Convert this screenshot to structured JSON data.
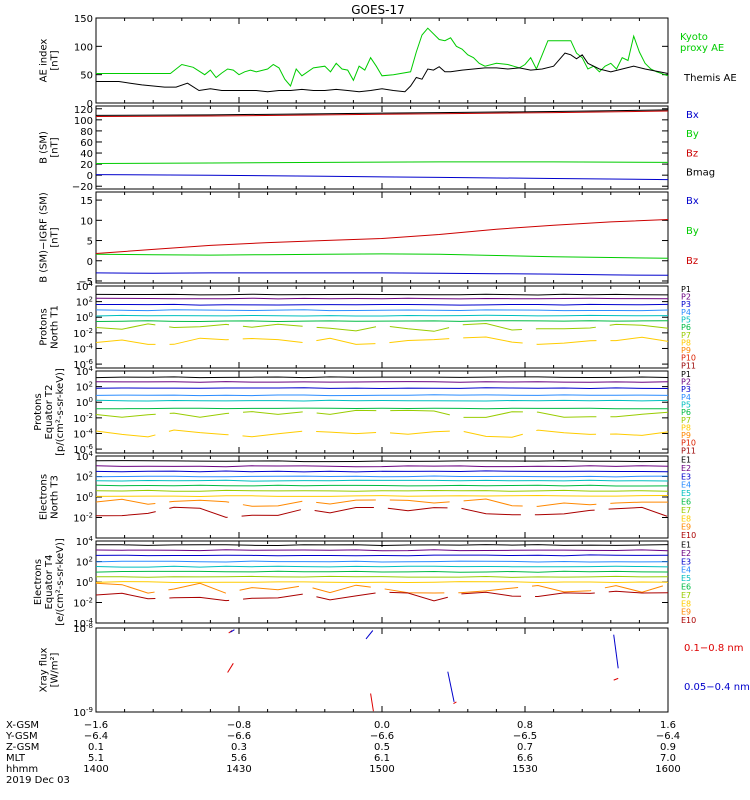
{
  "title": "GOES-17",
  "chart_data": [
    {
      "type": "line",
      "ylabel": [
        "AE index",
        "[nT]"
      ],
      "ylim": [
        0,
        150
      ],
      "yticks": [
        {
          "v": 150,
          "l": "150"
        },
        {
          "v": 100,
          "l": "100"
        },
        {
          "v": 50,
          "l": "50"
        },
        {
          "v": 0,
          "l": "0"
        }
      ],
      "series": [
        {
          "name": "Kyoto\nproxy AE",
          "color": "#00cc00",
          "x": [
            0,
            2.5,
            5,
            8,
            13,
            15,
            17,
            19,
            20,
            21,
            22,
            23,
            24,
            25,
            26,
            27,
            28,
            30,
            31,
            32,
            33,
            34,
            35,
            36,
            38,
            40,
            41,
            42,
            43,
            44,
            45,
            46,
            47,
            48,
            49,
            50,
            52,
            55,
            56,
            57,
            58,
            60,
            61,
            62,
            63,
            64,
            65,
            66,
            67,
            68,
            70,
            72,
            73,
            74,
            75,
            76,
            77,
            78,
            79,
            80,
            81,
            82,
            83,
            84,
            85,
            86,
            87,
            88,
            89,
            90,
            91,
            92,
            93,
            94,
            95,
            96,
            97,
            98,
            100
          ],
          "y": [
            52,
            52,
            52,
            52,
            52,
            68,
            63,
            50,
            58,
            45,
            53,
            60,
            58,
            50,
            55,
            58,
            55,
            60,
            68,
            62,
            42,
            30,
            60,
            48,
            62,
            65,
            55,
            70,
            60,
            58,
            40,
            65,
            58,
            80,
            65,
            48,
            50,
            55,
            90,
            120,
            132,
            112,
            110,
            115,
            100,
            95,
            85,
            80,
            70,
            65,
            70,
            68,
            65,
            62,
            68,
            80,
            60,
            85,
            110,
            110,
            110,
            110,
            110,
            88,
            80,
            60,
            65,
            55,
            65,
            70,
            60,
            80,
            75,
            118,
            90,
            70,
            60,
            55,
            48
          ]
        },
        {
          "name": "Themis AE",
          "color": "#000000",
          "x": [
            0,
            2,
            4,
            6,
            8,
            10,
            12,
            14,
            16,
            18,
            20,
            22,
            24,
            26,
            28,
            30,
            32,
            34,
            36,
            38,
            40,
            42,
            44,
            46,
            48,
            50,
            52,
            54,
            55,
            56,
            57,
            58,
            59,
            60,
            61,
            62,
            64,
            66,
            68,
            70,
            72,
            74,
            76,
            78,
            80,
            82,
            83,
            84,
            85,
            86,
            88,
            90,
            92,
            94,
            96,
            98,
            100
          ],
          "y": [
            38,
            38,
            38,
            35,
            32,
            30,
            28,
            28,
            35,
            22,
            25,
            22,
            22,
            22,
            22,
            20,
            22,
            22,
            24,
            22,
            22,
            24,
            22,
            20,
            22,
            25,
            22,
            20,
            30,
            45,
            42,
            60,
            58,
            64,
            55,
            55,
            58,
            60,
            62,
            62,
            60,
            62,
            58,
            60,
            65,
            88,
            85,
            78,
            85,
            70,
            60,
            55,
            60,
            65,
            60,
            56,
            52
          ]
        }
      ]
    },
    {
      "type": "line",
      "ylabel": [
        "B (SM)",
        "[nT]"
      ],
      "ylim": [
        -25,
        125
      ],
      "yticks": [
        {
          "v": 120,
          "l": "120"
        },
        {
          "v": 100,
          "l": "100"
        },
        {
          "v": 80,
          "l": "80"
        },
        {
          "v": 60,
          "l": "60"
        },
        {
          "v": 40,
          "l": "40"
        },
        {
          "v": 20,
          "l": "20"
        },
        {
          "v": 0,
          "l": "0"
        },
        {
          "v": -20,
          "l": "−20"
        }
      ],
      "series": [
        {
          "name": "Bx",
          "color": "#0000cc",
          "x": [
            0,
            20,
            40,
            60,
            80,
            100
          ],
          "y": [
            1,
            0,
            -2,
            -4,
            -6,
            -8
          ]
        },
        {
          "name": "By",
          "color": "#00cc00",
          "x": [
            0,
            20,
            40,
            60,
            80,
            100
          ],
          "y": [
            21,
            22,
            23,
            24,
            24,
            23
          ]
        },
        {
          "name": "Bz",
          "color": "#cc0000",
          "x": [
            0,
            20,
            40,
            60,
            80,
            100
          ],
          "y": [
            106,
            107,
            109,
            111,
            113,
            116
          ]
        },
        {
          "name": "Bmag",
          "color": "#000000",
          "x": [
            0,
            20,
            40,
            60,
            80,
            100
          ],
          "y": [
            108,
            109,
            111,
            113,
            115,
            118
          ]
        }
      ]
    },
    {
      "type": "line",
      "ylabel": [
        "B (SM)−IGRF (SM)",
        "[nT]"
      ],
      "ylim": [
        -5.5,
        17
      ],
      "yticks": [
        {
          "v": 15,
          "l": "15"
        },
        {
          "v": 10,
          "l": "10"
        },
        {
          "v": 5,
          "l": "5"
        },
        {
          "v": 0,
          "l": "0"
        },
        {
          "v": -5,
          "l": "−5"
        }
      ],
      "series": [
        {
          "name": "Bx",
          "color": "#0000cc",
          "x": [
            0,
            10,
            20,
            30,
            40,
            50,
            60,
            70,
            80,
            90,
            100
          ],
          "y": [
            -3,
            -3.1,
            -3,
            -3,
            -3,
            -3,
            -3.1,
            -3.2,
            -3.3,
            -3.5,
            -3.6
          ]
        },
        {
          "name": "By",
          "color": "#00cc00",
          "x": [
            0,
            10,
            20,
            30,
            40,
            50,
            60,
            70,
            80,
            90,
            100
          ],
          "y": [
            1.6,
            1.5,
            1.4,
            1.5,
            1.6,
            1.7,
            1.6,
            1.3,
            1,
            0.8,
            0.6
          ]
        },
        {
          "name": "Bz",
          "color": "#cc0000",
          "x": [
            0,
            10,
            20,
            30,
            40,
            50,
            60,
            70,
            80,
            90,
            100
          ],
          "y": [
            1.8,
            2.8,
            3.8,
            4.5,
            5,
            5.5,
            6.5,
            7.8,
            8.8,
            9.6,
            10.2
          ]
        }
      ]
    },
    {
      "type": "line",
      "log": true,
      "ylabel": [
        "Protons",
        "North T1"
      ],
      "ylim": [
        -6.5,
        4
      ],
      "yticks": [
        {
          "v": 4,
          "l": "10^4"
        },
        {
          "v": 2,
          "l": "10^2"
        },
        {
          "v": 0,
          "l": "10^0"
        },
        {
          "v": -2,
          "l": "10^-2"
        },
        {
          "v": -4,
          "l": "10^-4"
        },
        {
          "v": -6,
          "l": "10^-6"
        }
      ],
      "channels": [
        {
          "name": "P1",
          "color": "#000000",
          "level": 2.9
        },
        {
          "name": "P2",
          "color": "#6a0080",
          "level": 2.4
        },
        {
          "name": "P3",
          "color": "#0000cc",
          "level": 1.6
        },
        {
          "name": "P4",
          "color": "#2a8cff",
          "level": 0.9
        },
        {
          "name": "P5",
          "color": "#00bfbf",
          "level": 0.2
        },
        {
          "name": "P6",
          "color": "#00bb44",
          "level": -0.5
        },
        {
          "name": "P7",
          "color": "#99cc00",
          "level": -1.3
        },
        {
          "name": "P8",
          "color": "#ffcc00",
          "level": -3.0
        },
        {
          "name": "P9",
          "color": "#ff8800",
          "level": -8
        },
        {
          "name": "P10",
          "color": "#dd2200",
          "level": -8
        },
        {
          "name": "P11",
          "color": "#990000",
          "level": -8
        }
      ]
    },
    {
      "type": "line",
      "log": true,
      "ylabel": [
        "Protons",
        "Equator T2",
        "[p/(cm²-s-sr-keV)]"
      ],
      "ylim": [
        -6.5,
        4
      ],
      "yticks": [
        {
          "v": 4,
          "l": "10^4"
        },
        {
          "v": 2,
          "l": "10^2"
        },
        {
          "v": 0,
          "l": "10^0"
        },
        {
          "v": -2,
          "l": "10^-2"
        },
        {
          "v": -4,
          "l": "10^-4"
        },
        {
          "v": -6,
          "l": "10^-6"
        }
      ],
      "channels": [
        {
          "name": "P1",
          "color": "#000000",
          "level": 3.2
        },
        {
          "name": "P2",
          "color": "#6a0080",
          "level": 2.6
        },
        {
          "name": "P3",
          "color": "#0000cc",
          "level": 1.8
        },
        {
          "name": "P4",
          "color": "#2a8cff",
          "level": 0.9
        },
        {
          "name": "P5",
          "color": "#00bfbf",
          "level": 0.2
        },
        {
          "name": "P6",
          "color": "#00bb44",
          "level": -0.8
        },
        {
          "name": "P7",
          "color": "#99cc00",
          "level": -1.5
        },
        {
          "name": "P8",
          "color": "#ffcc00",
          "level": -4.0
        },
        {
          "name": "P9",
          "color": "#ff8800",
          "level": -8
        },
        {
          "name": "P10",
          "color": "#dd2200",
          "level": -8
        },
        {
          "name": "P11",
          "color": "#990000",
          "level": -8
        }
      ]
    },
    {
      "type": "line",
      "log": true,
      "ylabel": [
        "Electrons",
        "North T3"
      ],
      "ylim": [
        -4,
        4
      ],
      "yticks": [
        {
          "v": 4,
          "l": "10^4"
        },
        {
          "v": 2,
          "l": "10^2"
        },
        {
          "v": 0,
          "l": "10^0"
        },
        {
          "v": -2,
          "l": "10^-2"
        }
      ],
      "channels": [
        {
          "name": "E1",
          "color": "#000000",
          "level": 3.5
        },
        {
          "name": "E2",
          "color": "#6a0080",
          "level": 3.0
        },
        {
          "name": "E3",
          "color": "#0000cc",
          "level": 2.5
        },
        {
          "name": "E4",
          "color": "#2a8cff",
          "level": 2.0
        },
        {
          "name": "E5",
          "color": "#00bfbf",
          "level": 1.6
        },
        {
          "name": "E6",
          "color": "#00bb44",
          "level": 1.1
        },
        {
          "name": "E7",
          "color": "#99cc00",
          "level": 0.6
        },
        {
          "name": "E8",
          "color": "#ffcc00",
          "level": 0.1
        },
        {
          "name": "E9",
          "color": "#ff8800",
          "level": -0.5
        },
        {
          "name": "E10",
          "color": "#aa0000",
          "level": -1.5
        }
      ]
    },
    {
      "type": "line",
      "log": true,
      "ylabel": [
        "Electrons",
        "Equator T4",
        "[e/(cm²-s-sr-keV)]"
      ],
      "ylim": [
        -4,
        4
      ],
      "yticks": [
        {
          "v": 4,
          "l": "10^4"
        },
        {
          "v": 2,
          "l": "10^2"
        },
        {
          "v": 0,
          "l": "10^0"
        },
        {
          "v": -2,
          "l": "10^-2"
        },
        {
          "v": -4,
          "l": "10^-4"
        }
      ],
      "channels": [
        {
          "name": "E1",
          "color": "#000000",
          "level": 3.6
        },
        {
          "name": "E2",
          "color": "#6a0080",
          "level": 3.1
        },
        {
          "name": "E3",
          "color": "#0000cc",
          "level": 2.6
        },
        {
          "name": "E4",
          "color": "#2a8cff",
          "level": 2.0
        },
        {
          "name": "E5",
          "color": "#00bfbf",
          "level": 1.5
        },
        {
          "name": "E6",
          "color": "#00bb44",
          "level": 1.0
        },
        {
          "name": "E7",
          "color": "#99cc00",
          "level": 0.5
        },
        {
          "name": "E8",
          "color": "#ffcc00",
          "level": 0
        },
        {
          "name": "E9",
          "color": "#ff8800",
          "level": -0.6
        },
        {
          "name": "E10",
          "color": "#aa0000",
          "level": -1.4
        }
      ]
    },
    {
      "type": "line",
      "log": true,
      "ylabel": [
        "Xray flux",
        "[W/m²]"
      ],
      "ylim": [
        -9,
        -8
      ],
      "yticks": [
        {
          "v": -8,
          "l": "10^-8"
        },
        {
          "v": -9,
          "l": "10^-9"
        }
      ],
      "series": [
        {
          "name": "0.1−0.8 nm",
          "color": "#dd0000",
          "segments": [
            [
              [
                23,
                -8.53
              ],
              [
                24,
                -8.42
              ]
            ],
            [
              [
                23.2,
                -8.06
              ],
              [
                23.8,
                -8.03
              ]
            ],
            [
              [
                48,
                -8.78
              ],
              [
                48.5,
                -8.99
              ]
            ],
            [
              [
                62.5,
                -8.9
              ],
              [
                63,
                -8.88
              ]
            ],
            [
              [
                90.5,
                -8.62
              ],
              [
                91.3,
                -8.6
              ]
            ]
          ]
        },
        {
          "name": "0.05−0.4 nm",
          "color": "#0000cc",
          "segments": [
            [
              [
                23.5,
                -8.05
              ],
              [
                24.2,
                -8.02
              ]
            ],
            [
              [
                47.2,
                -8.13
              ],
              [
                48.4,
                -8.03
              ]
            ],
            [
              [
                61.5,
                -8.52
              ],
              [
                62.6,
                -8.88
              ]
            ],
            [
              [
                90.5,
                -8.08
              ],
              [
                91.3,
                -8.48
              ]
            ]
          ]
        }
      ]
    }
  ],
  "xaxis": {
    "ticks": [
      0,
      25,
      50,
      75,
      100
    ],
    "rows": [
      {
        "label": "X-GSM",
        "values": [
          "−1.6",
          "−0.8",
          "0.0",
          "0.8",
          "1.6"
        ]
      },
      {
        "label": "Y-GSM",
        "values": [
          "−6.4",
          "−6.6",
          "−6.6",
          "−6.5",
          "−6.4"
        ]
      },
      {
        "label": "Z-GSM",
        "values": [
          "0.1",
          "0.3",
          "0.5",
          "0.7",
          "0.9"
        ]
      },
      {
        "label": "MLT",
        "values": [
          "5.1",
          "5.6",
          "6.1",
          "6.6",
          "7.0"
        ]
      },
      {
        "label": "hhmm",
        "values": [
          "1400",
          "1430",
          "1500",
          "1530",
          "1600"
        ]
      }
    ],
    "date": "2019 Dec 03"
  }
}
